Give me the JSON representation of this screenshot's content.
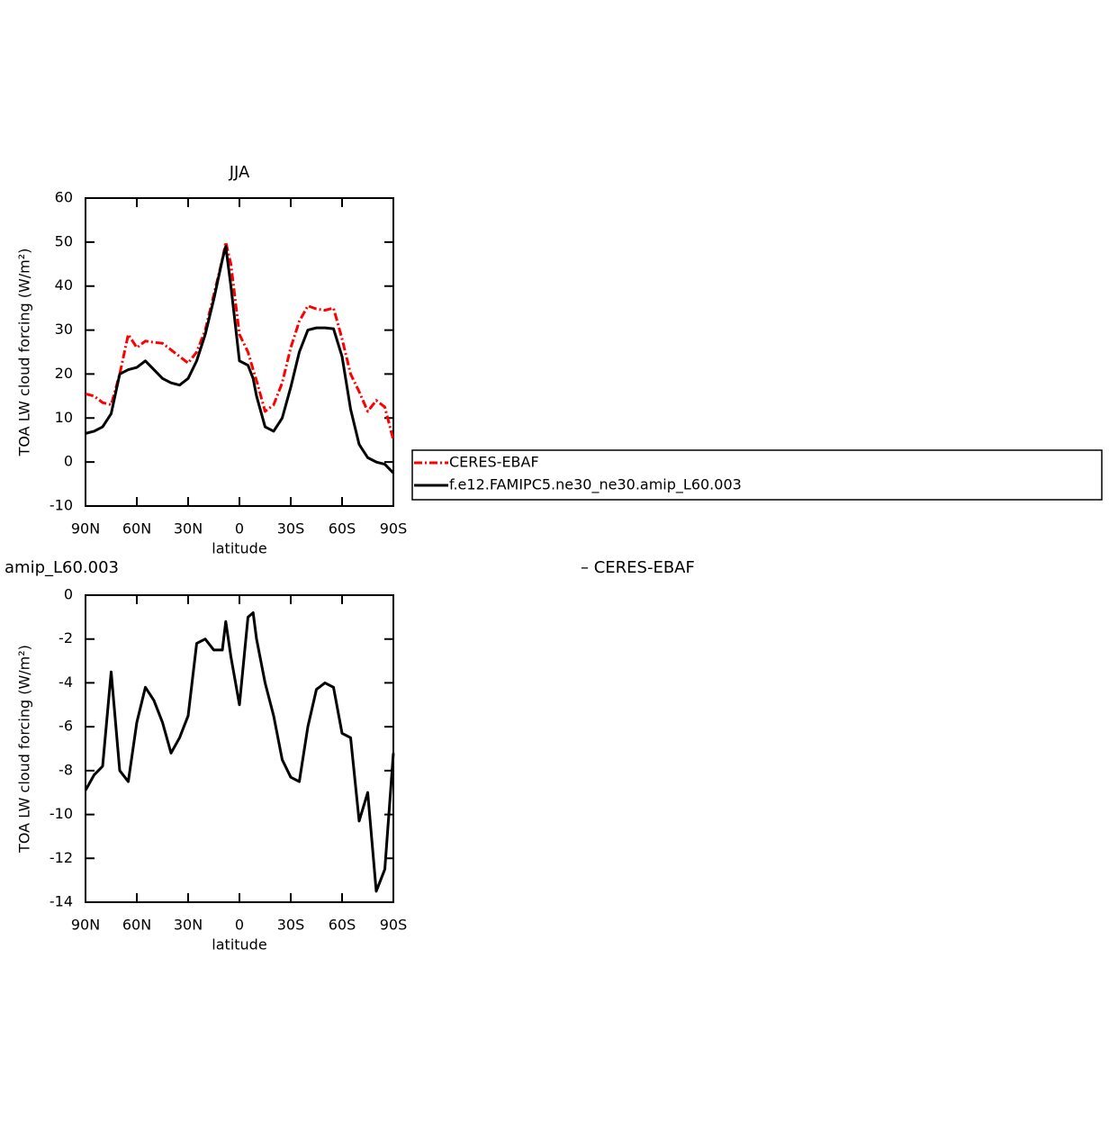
{
  "chart_data": [
    {
      "type": "line",
      "title": "JJA",
      "xlabel": "latitude",
      "ylabel": "TOA LW cloud forcing (W/m²)",
      "x": [
        90,
        85,
        80,
        75,
        70,
        65,
        60,
        55,
        50,
        45,
        40,
        35,
        30,
        25,
        20,
        15,
        10,
        8,
        5,
        0,
        -5,
        -8,
        -10,
        -15,
        -20,
        -25,
        -30,
        -35,
        -40,
        -45,
        -50,
        -55,
        -60,
        -65,
        -70,
        -75,
        -80,
        -85,
        -90
      ],
      "xlim": [
        90,
        -90
      ],
      "xticks": [
        {
          "value": 90,
          "label": "90N"
        },
        {
          "value": 60,
          "label": "60N"
        },
        {
          "value": 30,
          "label": "30N"
        },
        0,
        {
          "value": -30,
          "label": "30S"
        },
        {
          "value": -60,
          "label": "60S"
        },
        {
          "value": -90,
          "label": "90S"
        }
      ],
      "ylim": [
        -10,
        60
      ],
      "yticks": [
        -10,
        0,
        10,
        20,
        30,
        40,
        50,
        60
      ],
      "series": [
        {
          "name": "CERES-EBAF",
          "color": "#ff0000",
          "dashed": true,
          "values": [
            15.5,
            15,
            13.5,
            13,
            20,
            29,
            26,
            27.5,
            27.2,
            27,
            25.5,
            24,
            22.5,
            25,
            30,
            38,
            46,
            50,
            45,
            29,
            25,
            21,
            18.5,
            11.5,
            13,
            18,
            26,
            32,
            35.5,
            34.8,
            34.5,
            35,
            28,
            20,
            16,
            11.5,
            14,
            12.5,
            5
          ]
        },
        {
          "name": "f.e12.FAMIPC5.ne30_ne30.amip_L60.003",
          "color": "#000000",
          "dashed": false,
          "values": [
            6.5,
            7,
            8,
            11,
            20,
            21,
            21.5,
            23,
            21,
            19,
            18,
            17.5,
            19,
            23,
            29,
            37,
            46,
            49,
            40,
            23,
            22,
            19,
            15,
            8,
            7,
            10,
            17,
            25,
            30,
            30.5,
            30.5,
            30.3,
            24,
            12,
            4,
            1,
            0,
            -0.5,
            -2.5
          ]
        }
      ]
    },
    {
      "type": "line",
      "title_left": "amip_L60.003",
      "title_right": "– CERES-EBAF",
      "xlabel": "latitude",
      "ylabel": "TOA LW cloud forcing (W/m²)",
      "x": [
        90,
        85,
        80,
        75,
        70,
        65,
        60,
        55,
        50,
        45,
        40,
        35,
        30,
        25,
        20,
        15,
        10,
        8,
        5,
        0,
        -5,
        -8,
        -10,
        -15,
        -20,
        -25,
        -30,
        -35,
        -40,
        -45,
        -50,
        -55,
        -60,
        -65,
        -70,
        -75,
        -80,
        -85,
        -90
      ],
      "xlim": [
        90,
        -90
      ],
      "xticks": [
        {
          "value": 90,
          "label": "90N"
        },
        {
          "value": 60,
          "label": "60N"
        },
        {
          "value": 30,
          "label": "30N"
        },
        0,
        {
          "value": -30,
          "label": "30S"
        },
        {
          "value": -60,
          "label": "60S"
        },
        {
          "value": -90,
          "label": "90S"
        }
      ],
      "ylim": [
        -14,
        0
      ],
      "yticks": [
        -14,
        -12,
        -10,
        -8,
        -6,
        -4,
        -2,
        0
      ],
      "color": "#000000",
      "values": [
        -8.9,
        -8.2,
        -7.8,
        -3.5,
        -8,
        -8.5,
        -5.8,
        -4.2,
        -4.8,
        -5.8,
        -7.2,
        -6.5,
        -5.5,
        -2.2,
        -2,
        -2.5,
        -2.5,
        -1.2,
        -2.8,
        -5,
        -1,
        -0.8,
        -2,
        -4,
        -5.5,
        -7.5,
        -8.3,
        -8.5,
        -6,
        -4.3,
        -4,
        -4.2,
        -6.3,
        -6.5,
        -10.3,
        -9,
        -13.5,
        -12.5,
        -7.2
      ]
    }
  ]
}
